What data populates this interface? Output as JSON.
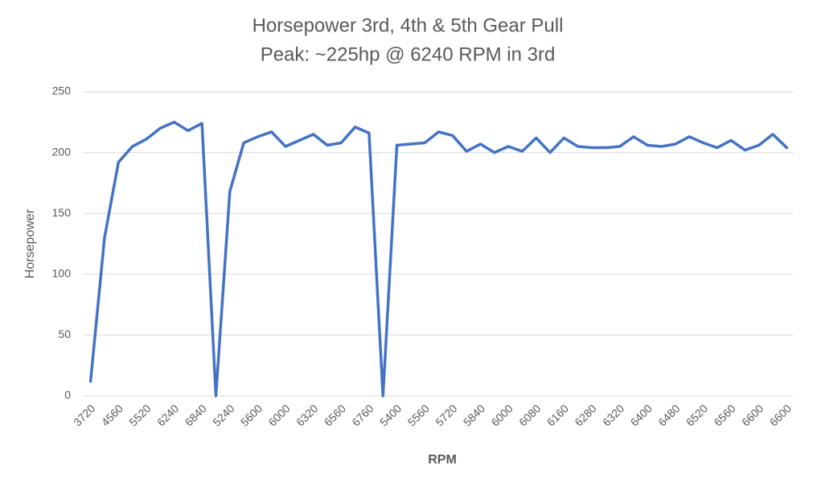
{
  "chart_data": {
    "type": "line",
    "title": "Horsepower 3rd, 4th & 5th Gear Pull",
    "subtitle": "Peak: ~225hp @ 6240 RPM in 3rd",
    "x_label": "RPM",
    "y_label": "Horsepower",
    "categories": [
      "3720",
      null,
      "4560",
      null,
      "5520",
      null,
      "6240",
      null,
      "6840",
      null,
      "5240",
      null,
      "5600",
      null,
      "6000",
      null,
      "6320",
      null,
      "6560",
      null,
      "6760",
      null,
      "5400",
      null,
      "5560",
      null,
      "5720",
      null,
      "5840",
      null,
      "6000",
      null,
      "6080",
      null,
      "6160",
      null,
      "6280",
      null,
      "6320",
      null,
      "6400",
      null,
      "6480",
      null,
      "6520",
      null,
      "6560",
      null,
      "6600",
      null,
      "6600"
    ],
    "series": [
      {
        "name": "Horsepower",
        "color": "#4472c4",
        "values": [
          12,
          130,
          192,
          205,
          211,
          220,
          225,
          218,
          224,
          0,
          168,
          208,
          213,
          217,
          205,
          210,
          215,
          206,
          208,
          221,
          216,
          0,
          206,
          207,
          208,
          217,
          214,
          201,
          207,
          200,
          205,
          201,
          212,
          200,
          212,
          205,
          204,
          204,
          205,
          213,
          206,
          205,
          207,
          213,
          208,
          204,
          210,
          202,
          206,
          215,
          204
        ]
      }
    ],
    "ylim": [
      0,
      250
    ],
    "yticks": [
      0,
      50,
      100,
      150,
      200,
      250
    ],
    "grid": true
  }
}
